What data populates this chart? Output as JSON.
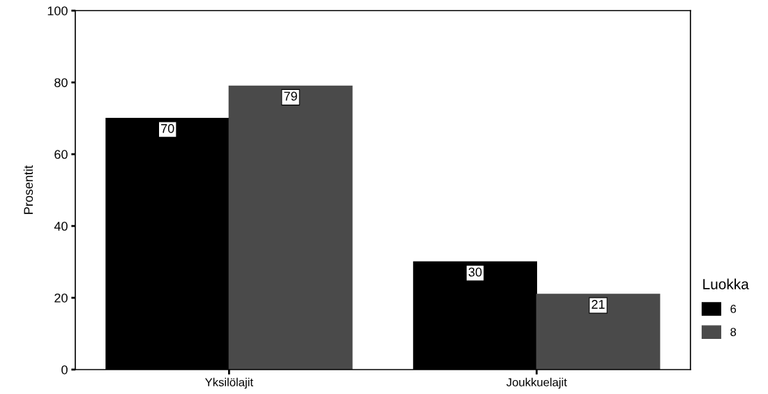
{
  "chart_data": {
    "type": "bar",
    "ylabel": "Prosentit",
    "legend_title": "Luokka",
    "categories": [
      "Yksilölajit",
      "Joukkuelajit"
    ],
    "series": [
      {
        "name": "6",
        "color": "#000000",
        "values": [
          70,
          30
        ]
      },
      {
        "name": "8",
        "color": "#4a4a4a",
        "values": [
          79,
          21
        ]
      }
    ],
    "ylim": [
      0,
      100
    ],
    "yticks": [
      0,
      20,
      40,
      60,
      80,
      100
    ],
    "grid": false,
    "legend": "right",
    "data_labels": true
  }
}
